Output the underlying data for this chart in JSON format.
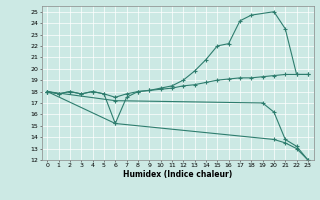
{
  "xlabel": "Humidex (Indice chaleur)",
  "bg_color": "#cce9e4",
  "line_color": "#2e7d6e",
  "grid_color": "#ffffff",
  "xlim": [
    -0.5,
    23.5
  ],
  "ylim": [
    12,
    25.5
  ],
  "xticks": [
    0,
    1,
    2,
    3,
    4,
    5,
    6,
    7,
    8,
    9,
    10,
    11,
    12,
    13,
    14,
    15,
    16,
    17,
    18,
    19,
    20,
    21,
    22,
    23
  ],
  "yticks": [
    12,
    13,
    14,
    15,
    16,
    17,
    18,
    19,
    20,
    21,
    22,
    23,
    24,
    25
  ],
  "lines": [
    {
      "x": [
        0,
        1,
        2,
        3,
        4,
        5,
        6,
        7,
        8,
        9,
        10,
        11,
        12,
        13,
        14,
        15,
        16,
        17,
        18,
        20,
        21,
        22,
        23
      ],
      "y": [
        18,
        17.8,
        18,
        17.8,
        18,
        17.8,
        15.2,
        17.5,
        18,
        18.1,
        18.3,
        18.5,
        19.0,
        19.8,
        20.8,
        22.0,
        22.2,
        24.2,
        24.7,
        25.0,
        23.5,
        19.5,
        19.5
      ]
    },
    {
      "x": [
        0,
        1,
        2,
        3,
        4,
        5,
        6,
        7,
        8,
        9,
        10,
        11,
        12,
        13,
        14,
        15,
        16,
        17,
        18,
        19,
        20,
        21,
        22,
        23
      ],
      "y": [
        18,
        17.8,
        18,
        17.8,
        18,
        17.8,
        17.5,
        17.8,
        18,
        18.1,
        18.2,
        18.3,
        18.5,
        18.6,
        18.8,
        19.0,
        19.1,
        19.2,
        19.2,
        19.3,
        19.4,
        19.5,
        19.5,
        19.5
      ]
    },
    {
      "x": [
        0,
        6,
        20,
        21,
        22,
        23
      ],
      "y": [
        18,
        15.2,
        13.8,
        13.5,
        13.0,
        12.0
      ]
    },
    {
      "x": [
        0,
        6,
        19,
        20,
        21,
        22,
        23
      ],
      "y": [
        18,
        17.2,
        17.0,
        16.2,
        13.8,
        13.2,
        12.0
      ]
    }
  ]
}
